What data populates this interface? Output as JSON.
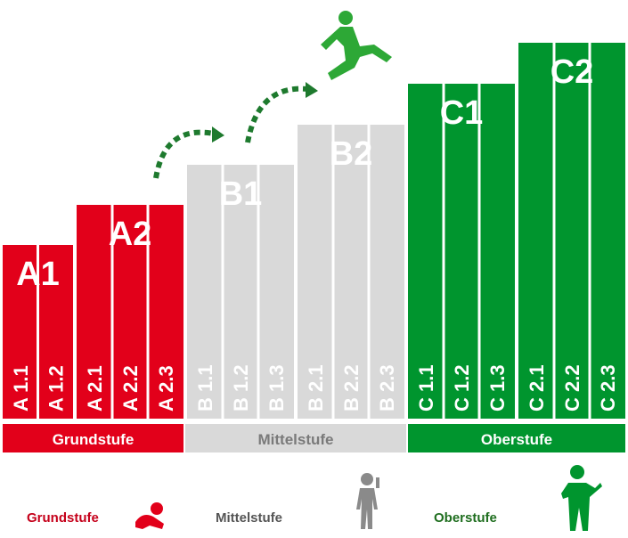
{
  "colors": {
    "red": "#e2001a",
    "gray": "#d9d9d9",
    "green": "#00952e",
    "text_red": "#c5001a",
    "text_gray": "#555555",
    "text_green": "#1f6e1f"
  },
  "levels": [
    {
      "name": "A1",
      "color": "red",
      "sublevels": [
        "A 1.1",
        "A 1.2"
      ]
    },
    {
      "name": "A2",
      "color": "red",
      "sublevels": [
        "A 2.1",
        "A 2.2",
        "A 2.3"
      ]
    },
    {
      "name": "B1",
      "color": "gray",
      "sublevels": [
        "B 1.1",
        "B 1.2",
        "B 1.3"
      ]
    },
    {
      "name": "B2",
      "color": "gray",
      "sublevels": [
        "B 2.1",
        "B 2.2",
        "B 2.3"
      ]
    },
    {
      "name": "C1",
      "color": "green",
      "sublevels": [
        "C 1.1",
        "C 1.2",
        "C 1.3"
      ]
    },
    {
      "name": "C2",
      "color": "green",
      "sublevels": [
        "C 2.1",
        "C 2.2",
        "C 2.3"
      ]
    }
  ],
  "stages": [
    {
      "label": "Grundstufe",
      "color": "red"
    },
    {
      "label": "Mittelstufe",
      "color": "gray"
    },
    {
      "label": "Oberstufe",
      "color": "green"
    }
  ],
  "legend": [
    {
      "label": "Grundstufe",
      "icon": "baby-crawling-icon"
    },
    {
      "label": "Mittelstufe",
      "icon": "person-standing-icon"
    },
    {
      "label": "Oberstufe",
      "icon": "person-presenting-icon"
    }
  ],
  "decorations": {
    "arrows_icon": "dashed-arrow-icon",
    "runner_icon": "runner-icon"
  }
}
